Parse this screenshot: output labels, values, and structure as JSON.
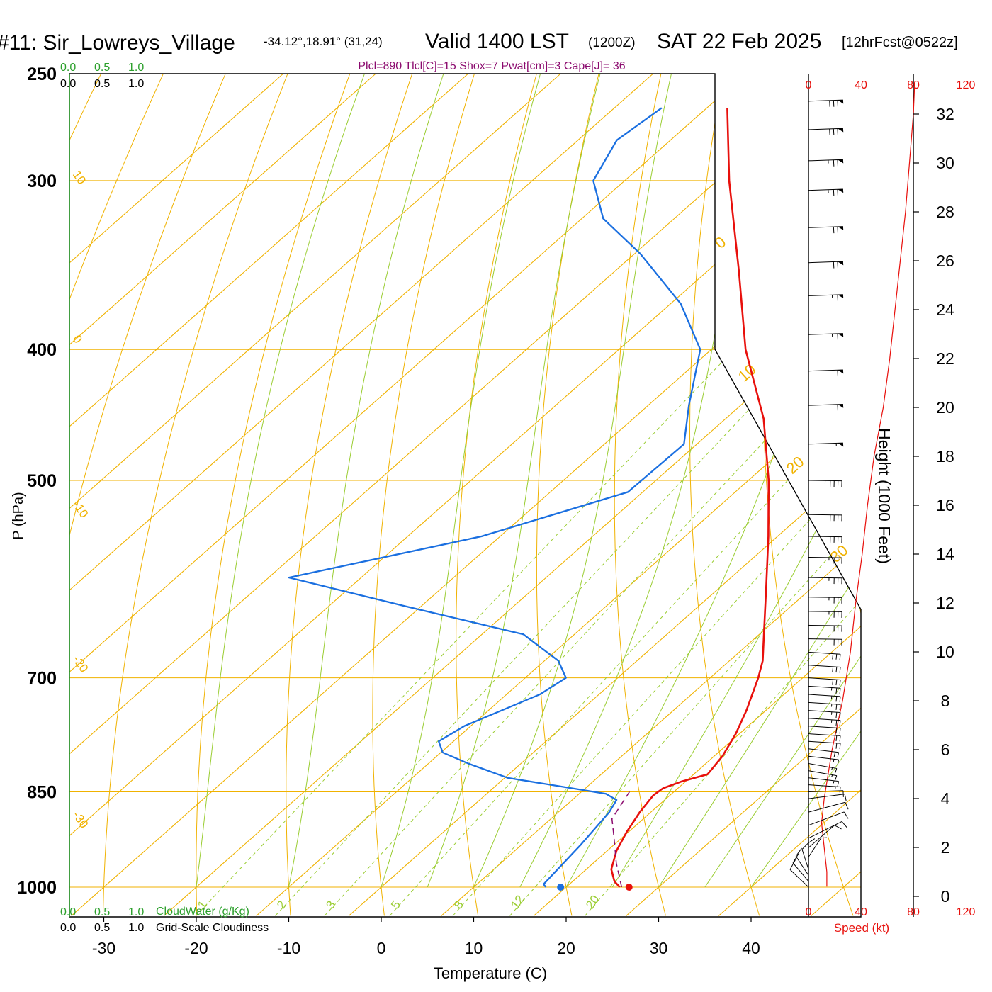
{
  "header": {
    "site": "#11: Sir_Lowreys_Village",
    "coords": "-34.12°,18.91° (31,24)",
    "valid": "Valid 1400 LST",
    "zulu": "(1200Z)",
    "date": "SAT 22 Feb 2025",
    "forecast": "[12hrFcst@0522z]",
    "indices": "Plcl=890 Tlcl[C]=15 Shox=7 Pwat[cm]=3 Cape[J]= 36"
  },
  "colors": {
    "temperature": "#e8100c",
    "dewpoint": "#1a6fe0",
    "parcel": "#8b0a6e",
    "isotherm": "#f0b200",
    "dry_adiabat": "#f0b200",
    "moist_adiabat": "#9acd32",
    "mixing_ratio": "#9acd32",
    "cloud": "#2ca02c",
    "speed": "#e8100c"
  },
  "chart_data": {
    "type": "skew-t",
    "title": "#11: Sir_Lowreys_Village Valid 1400 LST (1200Z) SAT 22 Feb 2025",
    "xlabel": "Temperature (C)",
    "ylabel": "P (hPa)",
    "ylabel_right": "Height (1000 Feet)",
    "x_ticks": [
      "-30",
      "-20",
      "-10",
      "0",
      "10",
      "20",
      "30",
      "40"
    ],
    "p_ticks": [
      "250",
      "300",
      "400",
      "500",
      "700",
      "850",
      "1000"
    ],
    "height_ticks": [
      "0",
      "2",
      "4",
      "6",
      "8",
      "10",
      "12",
      "14",
      "16",
      "18",
      "20",
      "22",
      "24",
      "26",
      "28",
      "30",
      "32"
    ],
    "speed_ticks": [
      "0",
      "40",
      "80",
      "120"
    ],
    "speed_label": "Speed (kt)",
    "cloud_scale": [
      "0.0",
      "0.5",
      "1.0"
    ],
    "cloudwater_label": "CloudWater (g/Kg)",
    "cloudiness_label": "Grid-Scale Cloudiness",
    "temperature_profile": [
      {
        "p": 1000,
        "t": 25.8
      },
      {
        "p": 990,
        "t": 24.5
      },
      {
        "p": 970,
        "t": 22.7
      },
      {
        "p": 940,
        "t": 21.0
      },
      {
        "p": 910,
        "t": 19.8
      },
      {
        "p": 880,
        "t": 18.8
      },
      {
        "p": 855,
        "t": 18.2
      },
      {
        "p": 845,
        "t": 18.4
      },
      {
        "p": 835,
        "t": 19.6
      },
      {
        "p": 825,
        "t": 21.5
      },
      {
        "p": 800,
        "t": 20.9
      },
      {
        "p": 770,
        "t": 19.6
      },
      {
        "p": 740,
        "t": 17.9
      },
      {
        "p": 700,
        "t": 15.2
      },
      {
        "p": 680,
        "t": 13.6
      },
      {
        "p": 650,
        "t": 10.5
      },
      {
        "p": 600,
        "t": 5.0
      },
      {
        "p": 550,
        "t": -1.0
      },
      {
        "p": 500,
        "t": -7.8
      },
      {
        "p": 450,
        "t": -15.9
      },
      {
        "p": 400,
        "t": -26.3
      },
      {
        "p": 350,
        "t": -36.6
      },
      {
        "p": 300,
        "t": -48.7
      },
      {
        "p": 265,
        "t": -57.8
      }
    ],
    "dewpoint_profile": [
      {
        "p": 1000,
        "td": 17.8
      },
      {
        "p": 995,
        "td": 17.2
      },
      {
        "p": 970,
        "td": 16.9
      },
      {
        "p": 930,
        "td": 16.4
      },
      {
        "p": 880,
        "td": 15.5
      },
      {
        "p": 862,
        "td": 14.8
      },
      {
        "p": 853,
        "td": 12.9
      },
      {
        "p": 830,
        "td": 0.3
      },
      {
        "p": 810,
        "td": -5.7
      },
      {
        "p": 795,
        "td": -9.8
      },
      {
        "p": 780,
        "td": -11.6
      },
      {
        "p": 760,
        "td": -10.7
      },
      {
        "p": 720,
        "td": -6.4
      },
      {
        "p": 700,
        "td": -5.6
      },
      {
        "p": 680,
        "td": -8.5
      },
      {
        "p": 650,
        "td": -15.5
      },
      {
        "p": 620,
        "td": -31.5
      },
      {
        "p": 590,
        "td": -47.8
      },
      {
        "p": 550,
        "td": -32.0
      },
      {
        "p": 510,
        "td": -21.6
      },
      {
        "p": 470,
        "td": -21.4
      },
      {
        "p": 440,
        "td": -25.6
      },
      {
        "p": 400,
        "td": -31.2
      },
      {
        "p": 370,
        "td": -38.9
      },
      {
        "p": 340,
        "td": -49.3
      },
      {
        "p": 320,
        "td": -57.7
      },
      {
        "p": 300,
        "td": -63.4
      },
      {
        "p": 280,
        "td": -65.8
      },
      {
        "p": 265,
        "td": -64.9
      }
    ],
    "parcel_profile": [
      {
        "p": 1000,
        "t": 26.0
      },
      {
        "p": 960,
        "t": 22.5
      },
      {
        "p": 920,
        "t": 19.2
      },
      {
        "p": 890,
        "t": 16.6
      },
      {
        "p": 870,
        "t": 15.9
      },
      {
        "p": 850,
        "t": 15.2
      }
    ],
    "surface_temperature": 26.8,
    "surface_dewpoint": 19.4,
    "speed_profile": [
      {
        "h": 0.4,
        "kt": 14
      },
      {
        "h": 1.0,
        "kt": 14
      },
      {
        "h": 3.0,
        "kt": 10
      },
      {
        "h": 4.0,
        "kt": 12
      },
      {
        "h": 6.0,
        "kt": 18
      },
      {
        "h": 8.0,
        "kt": 26
      },
      {
        "h": 10.0,
        "kt": 32
      },
      {
        "h": 12.0,
        "kt": 36
      },
      {
        "h": 14.0,
        "kt": 41
      },
      {
        "h": 16.0,
        "kt": 45
      },
      {
        "h": 18.0,
        "kt": 50
      },
      {
        "h": 20.0,
        "kt": 57
      },
      {
        "h": 22.0,
        "kt": 62
      },
      {
        "h": 24.0,
        "kt": 66
      },
      {
        "h": 26.0,
        "kt": 70
      },
      {
        "h": 28.0,
        "kt": 74
      },
      {
        "h": 30.0,
        "kt": 77
      },
      {
        "h": 32.0,
        "kt": 80
      },
      {
        "h": 33.2,
        "kt": 81
      }
    ],
    "wind_barbs": [
      {
        "p": 1000,
        "dir": 150,
        "kt": 10
      },
      {
        "p": 990,
        "dir": 155,
        "kt": 10
      },
      {
        "p": 980,
        "dir": 160,
        "kt": 10
      },
      {
        "p": 970,
        "dir": 170,
        "kt": 10
      },
      {
        "p": 960,
        "dir": 180,
        "kt": 10
      },
      {
        "p": 950,
        "dir": 200,
        "kt": 10
      },
      {
        "p": 935,
        "dir": 225,
        "kt": 10
      },
      {
        "p": 920,
        "dir": 245,
        "kt": 10
      },
      {
        "p": 900,
        "dir": 255,
        "kt": 10
      },
      {
        "p": 880,
        "dir": 265,
        "kt": 10
      },
      {
        "p": 860,
        "dir": 280,
        "kt": 10
      },
      {
        "p": 850,
        "dir": 290,
        "kt": 10
      },
      {
        "p": 840,
        "dir": 300,
        "kt": 15
      },
      {
        "p": 830,
        "dir": 305,
        "kt": 15
      },
      {
        "p": 820,
        "dir": 310,
        "kt": 15
      },
      {
        "p": 810,
        "dir": 310,
        "kt": 15
      },
      {
        "p": 800,
        "dir": 305,
        "kt": 15
      },
      {
        "p": 790,
        "dir": 305,
        "kt": 20
      },
      {
        "p": 780,
        "dir": 300,
        "kt": 20
      },
      {
        "p": 770,
        "dir": 300,
        "kt": 20
      },
      {
        "p": 760,
        "dir": 300,
        "kt": 20
      },
      {
        "p": 750,
        "dir": 300,
        "kt": 25
      },
      {
        "p": 740,
        "dir": 300,
        "kt": 25
      },
      {
        "p": 730,
        "dir": 300,
        "kt": 25
      },
      {
        "p": 720,
        "dir": 300,
        "kt": 25
      },
      {
        "p": 710,
        "dir": 300,
        "kt": 25
      },
      {
        "p": 700,
        "dir": 300,
        "kt": 30
      },
      {
        "p": 685,
        "dir": 300,
        "kt": 30
      },
      {
        "p": 670,
        "dir": 300,
        "kt": 30
      },
      {
        "p": 655,
        "dir": 295,
        "kt": 30
      },
      {
        "p": 640,
        "dir": 295,
        "kt": 30
      },
      {
        "p": 625,
        "dir": 295,
        "kt": 35
      },
      {
        "p": 610,
        "dir": 295,
        "kt": 35
      },
      {
        "p": 590,
        "dir": 295,
        "kt": 35
      },
      {
        "p": 570,
        "dir": 295,
        "kt": 35
      },
      {
        "p": 550,
        "dir": 295,
        "kt": 40
      },
      {
        "p": 530,
        "dir": 295,
        "kt": 40
      },
      {
        "p": 500,
        "dir": 295,
        "kt": 45
      },
      {
        "p": 470,
        "dir": 290,
        "kt": 55
      },
      {
        "p": 440,
        "dir": 290,
        "kt": 60
      },
      {
        "p": 415,
        "dir": 290,
        "kt": 60
      },
      {
        "p": 390,
        "dir": 290,
        "kt": 65
      },
      {
        "p": 365,
        "dir": 290,
        "kt": 65
      },
      {
        "p": 345,
        "dir": 290,
        "kt": 70
      },
      {
        "p": 325,
        "dir": 290,
        "kt": 70
      },
      {
        "p": 305,
        "dir": 290,
        "kt": 75
      },
      {
        "p": 290,
        "dir": 290,
        "kt": 75
      },
      {
        "p": 275,
        "dir": 290,
        "kt": 80
      },
      {
        "p": 262,
        "dir": 290,
        "kt": 80
      }
    ],
    "labels": {
      "dry_adiabats": [
        "10",
        "0",
        "-10",
        "-20",
        "-30"
      ],
      "isotherm_labels": [
        "0",
        "10",
        "20",
        "30"
      ],
      "mixing_ratio": [
        "1",
        "2",
        "3",
        "5",
        "8",
        "12",
        "20"
      ]
    }
  }
}
